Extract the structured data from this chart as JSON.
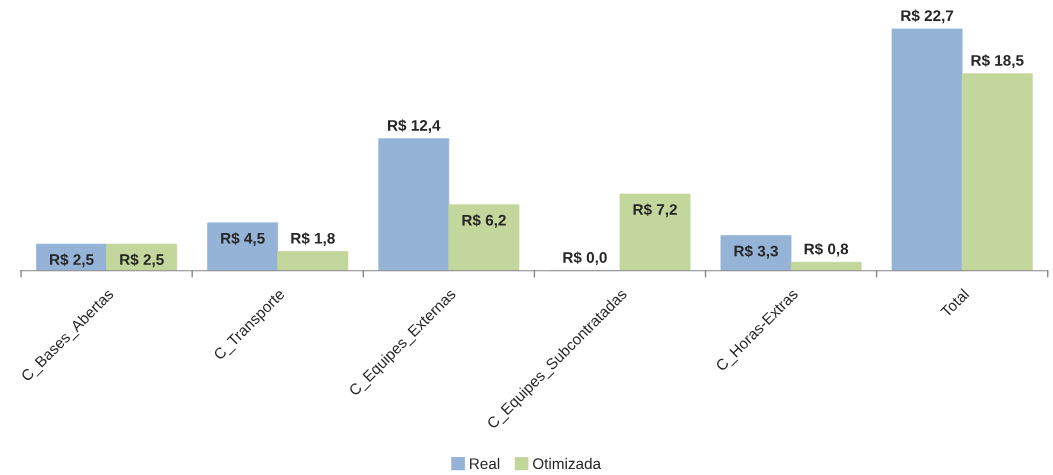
{
  "chart_data": {
    "type": "bar",
    "categories": [
      "C_Bases_Abertas",
      "C_Transporte",
      "C_Equipes_Externas",
      "C_Equipes_Subcontratadas",
      "C_Horas-Extras",
      "Total"
    ],
    "series": [
      {
        "name": "Real",
        "color": "#95b3d7",
        "values": [
          2.5,
          4.5,
          12.4,
          0.0,
          3.3,
          22.7
        ],
        "value_labels": [
          "R$ 2,5",
          "R$ 4,5",
          "R$ 12,4",
          "R$ 0,0",
          "R$ 3,3",
          "R$ 22,7"
        ]
      },
      {
        "name": "Otimizada",
        "color": "#c3d69b",
        "values": [
          2.5,
          1.8,
          6.2,
          7.2,
          0.8,
          18.5
        ],
        "value_labels": [
          "R$ 2,5",
          "R$ 1,8",
          "R$ 6,2",
          "R$ 7,2",
          "R$ 0,8",
          "R$ 18,5"
        ]
      }
    ],
    "legend": "bottom",
    "grid": false,
    "tick_labels": "x"
  }
}
